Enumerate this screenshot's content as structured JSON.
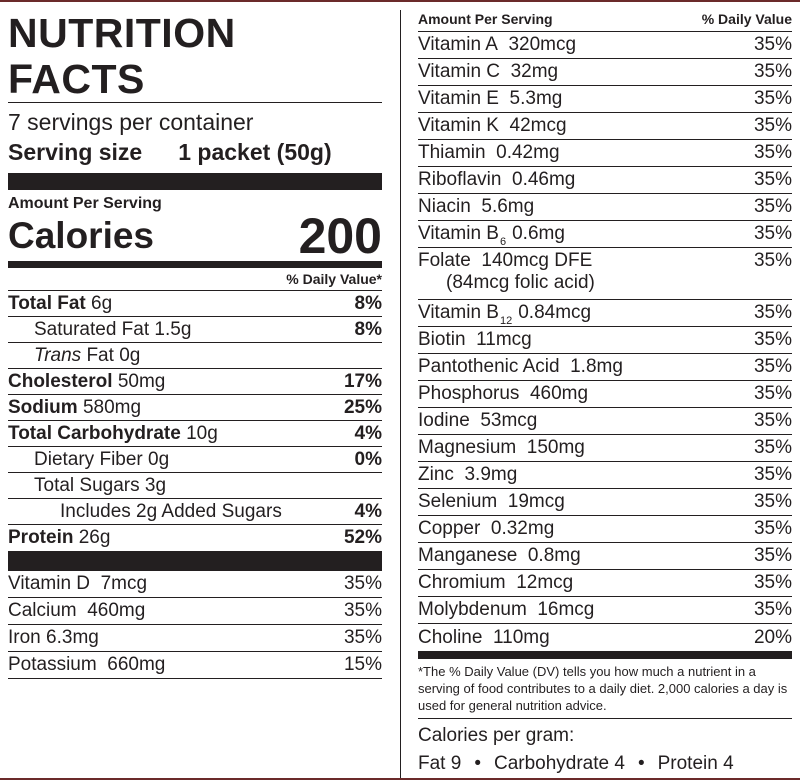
{
  "title": "NUTRITION FACTS",
  "servings": "7 servings per container",
  "serving_size_label": "Serving size",
  "serving_size_value": "1 packet (50g)",
  "amount_per_serving": "Amount Per Serving",
  "calories_label": "Calories",
  "calories_value": "200",
  "dv_header": "% Daily Value*",
  "nutrients": [
    {
      "name": "Total Fat",
      "amount": "6g",
      "dv": "8%"
    },
    {
      "name": "Saturated Fat",
      "amount": "1.5g",
      "dv": "8%"
    },
    {
      "name": "Trans",
      "name_rest": "Fat",
      "amount": "0g",
      "dv": ""
    },
    {
      "name": "Cholesterol",
      "amount": "50mg",
      "dv": "17%"
    },
    {
      "name": "Sodium",
      "amount": "580mg",
      "dv": "25%"
    },
    {
      "name": "Total Carbohydrate",
      "amount": "10g",
      "dv": "4%"
    },
    {
      "name": "Dietary Fiber",
      "amount": "0g",
      "dv": "0%"
    },
    {
      "name": "Total Sugars",
      "amount": "3g",
      "dv": ""
    },
    {
      "name": "Includes 2g Added Sugars",
      "amount": "",
      "dv": "4%"
    },
    {
      "name": "Protein",
      "amount": "26g",
      "dv": "52%"
    }
  ],
  "left_vitamins": [
    {
      "name": "Vitamin D",
      "amount": "7mcg",
      "dv": "35%"
    },
    {
      "name": "Calcium",
      "amount": "460mg",
      "dv": "35%"
    },
    {
      "name": "Iron",
      "amount": "6.3mg",
      "dv": "35%"
    },
    {
      "name": "Potassium",
      "amount": "660mg",
      "dv": "15%"
    }
  ],
  "right_header": {
    "left": "Amount Per Serving",
    "right": "% Daily Value"
  },
  "right_vitamins": [
    {
      "name": "Vitamin A",
      "amount": "320mcg",
      "dv": "35%"
    },
    {
      "name": "Vitamin C",
      "amount": "32mg",
      "dv": "35%"
    },
    {
      "name": "Vitamin E",
      "amount": "5.3mg",
      "dv": "35%"
    },
    {
      "name": "Vitamin K",
      "amount": "42mcg",
      "dv": "35%"
    },
    {
      "name": "Thiamin",
      "amount": "0.42mg",
      "dv": "35%"
    },
    {
      "name": "Riboflavin",
      "amount": "0.46mg",
      "dv": "35%"
    },
    {
      "name": "Niacin",
      "amount": "5.6mg",
      "dv": "35%"
    },
    {
      "name": "Vitamin B",
      "sub": "6",
      "amount": "0.6mg",
      "dv": "35%"
    },
    {
      "name": "Folate",
      "amount": "140mcg DFE",
      "line2": "(84mcg folic acid)",
      "dv": "35%"
    },
    {
      "name": "Vitamin B",
      "sub": "12",
      "amount": "0.84mcg",
      "dv": "35%"
    },
    {
      "name": "Biotin",
      "amount": "11mcg",
      "dv": "35%"
    },
    {
      "name": "Pantothenic Acid",
      "amount": "1.8mg",
      "dv": "35%"
    },
    {
      "name": "Phosphorus",
      "amount": "460mg",
      "dv": "35%"
    },
    {
      "name": "Iodine",
      "amount": "53mcg",
      "dv": "35%"
    },
    {
      "name": "Magnesium",
      "amount": "150mg",
      "dv": "35%"
    },
    {
      "name": "Zinc",
      "amount": "3.9mg",
      "dv": "35%"
    },
    {
      "name": "Selenium",
      "amount": "19mcg",
      "dv": "35%"
    },
    {
      "name": "Copper",
      "amount": "0.32mg",
      "dv": "35%"
    },
    {
      "name": "Manganese",
      "amount": "0.8mg",
      "dv": "35%"
    },
    {
      "name": "Chromium",
      "amount": "12mcg",
      "dv": "35%"
    },
    {
      "name": "Molybdenum",
      "amount": "16mcg",
      "dv": "35%"
    },
    {
      "name": "Choline",
      "amount": "110mg",
      "dv": "20%"
    }
  ],
  "footnote": "*The % Daily Value (DV) tells you how much a nutrient in a serving of food contributes to a daily diet. 2,000 calories a day is used for general nutrition advice.",
  "calories_per_gram_label": "Calories per gram:",
  "calories_per_gram": {
    "fat": "Fat 9",
    "carb": "Carbohydrate 4",
    "protein": "Protein 4",
    "bullet": "•"
  }
}
